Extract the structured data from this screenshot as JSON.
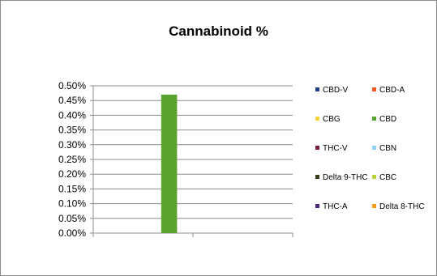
{
  "chart_data": {
    "type": "bar",
    "title": "Cannabinoid %",
    "xlabel": "",
    "ylabel": "",
    "ylim": [
      0,
      0.005
    ],
    "yticks": [
      "0.50%",
      "0.45%",
      "0.40%",
      "0.35%",
      "0.30%",
      "0.25%",
      "0.20%",
      "0.15%",
      "0.10%",
      "0.05%",
      "0.00%"
    ],
    "grid": true,
    "legend_position": "right",
    "series": [
      {
        "name": "CBD-V",
        "color": "#1f3f8c",
        "value": 0
      },
      {
        "name": "CBD-A",
        "color": "#f25a22",
        "value": 0
      },
      {
        "name": "CBG",
        "color": "#f6d33f",
        "value": 0
      },
      {
        "name": "CBD",
        "color": "#5ca32e",
        "value": 0.0047
      },
      {
        "name": "THC-V",
        "color": "#7a1e3a",
        "value": 0
      },
      {
        "name": "CBN",
        "color": "#8fd0f0",
        "value": 0
      },
      {
        "name": "Delta 9-THC",
        "color": "#3b3b1c",
        "value": 0
      },
      {
        "name": "CBC",
        "color": "#b5d334",
        "value": 0
      },
      {
        "name": "THC-A",
        "color": "#4b2a7b",
        "value": 0
      },
      {
        "name": "Delta 8-THC",
        "color": "#f59b1a",
        "value": 0
      }
    ]
  }
}
